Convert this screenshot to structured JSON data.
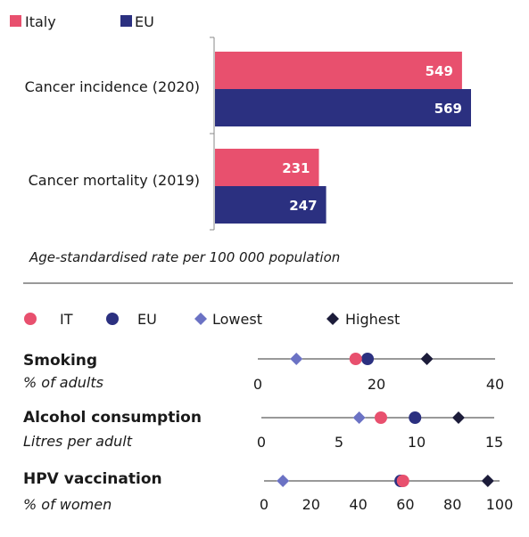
{
  "colors": {
    "italy": "#e8506e",
    "eu": "#2b3080",
    "lowest": "#6b72c4",
    "highest": "#1c1c3a",
    "axis": "#888888",
    "divider": "#333333"
  },
  "chart_data": [
    {
      "type": "bar",
      "orientation": "horizontal",
      "categories": [
        "Cancer incidence (2020)",
        "Cancer mortality (2019)"
      ],
      "series": [
        {
          "name": "Italy",
          "values": [
            549,
            231
          ]
        },
        {
          "name": "EU",
          "values": [
            569,
            247
          ]
        }
      ],
      "caption": "Age-standardised rate per 100 000 population",
      "xlim": [
        0,
        620
      ],
      "legend": "top-left"
    },
    {
      "type": "scatter",
      "legend": {
        "it": "IT",
        "eu": "EU",
        "lowest": "Lowest",
        "highest": "Highest"
      },
      "indicators": [
        {
          "title": "Smoking",
          "unit": "% of adults",
          "range": [
            0,
            40
          ],
          "ticks": [
            "0",
            "20",
            "40"
          ],
          "values": {
            "lowest": 6.5,
            "it": 16.5,
            "eu": 18.5,
            "highest": 28.5
          }
        },
        {
          "title": "Alcohol consumption",
          "unit": "Litres per adult",
          "range": [
            0,
            15
          ],
          "ticks": [
            "0",
            "5",
            "10",
            "15"
          ],
          "values": {
            "lowest": 6.3,
            "it": 7.7,
            "eu": 9.9,
            "highest": 12.7
          }
        },
        {
          "title": "HPV vaccination",
          "unit": "% of women",
          "range": [
            0,
            100
          ],
          "ticks": [
            "0",
            "20",
            "40",
            "60",
            "80",
            "100"
          ],
          "values": {
            "lowest": 8,
            "it": 59,
            "eu": 58,
            "highest": 95
          }
        }
      ]
    }
  ]
}
